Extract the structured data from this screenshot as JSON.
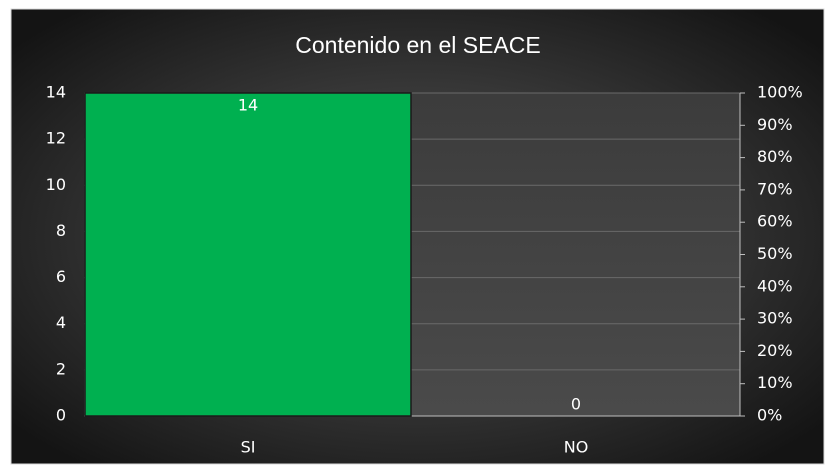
{
  "chart_data": {
    "type": "bar",
    "title": "Contenido en el SEACE",
    "categories": [
      "SI",
      "NO"
    ],
    "values": [
      14,
      0
    ],
    "color": "#00b050",
    "ylim": [
      0,
      14
    ],
    "yticks": [
      0,
      2,
      4,
      6,
      8,
      10,
      12,
      14
    ],
    "y2lim": [
      0,
      100
    ],
    "y2ticks": [
      {
        "value": 0,
        "label": "0%"
      },
      {
        "value": 10,
        "label": "10%"
      },
      {
        "value": 20,
        "label": "20%"
      },
      {
        "value": 30,
        "label": "30%"
      },
      {
        "value": 40,
        "label": "40%"
      },
      {
        "value": 50,
        "label": "50%"
      },
      {
        "value": 60,
        "label": "60%"
      },
      {
        "value": 70,
        "label": "70%"
      },
      {
        "value": 80,
        "label": "80%"
      },
      {
        "value": 90,
        "label": "90%"
      },
      {
        "value": 100,
        "label": "100%"
      }
    ],
    "grid": true
  }
}
